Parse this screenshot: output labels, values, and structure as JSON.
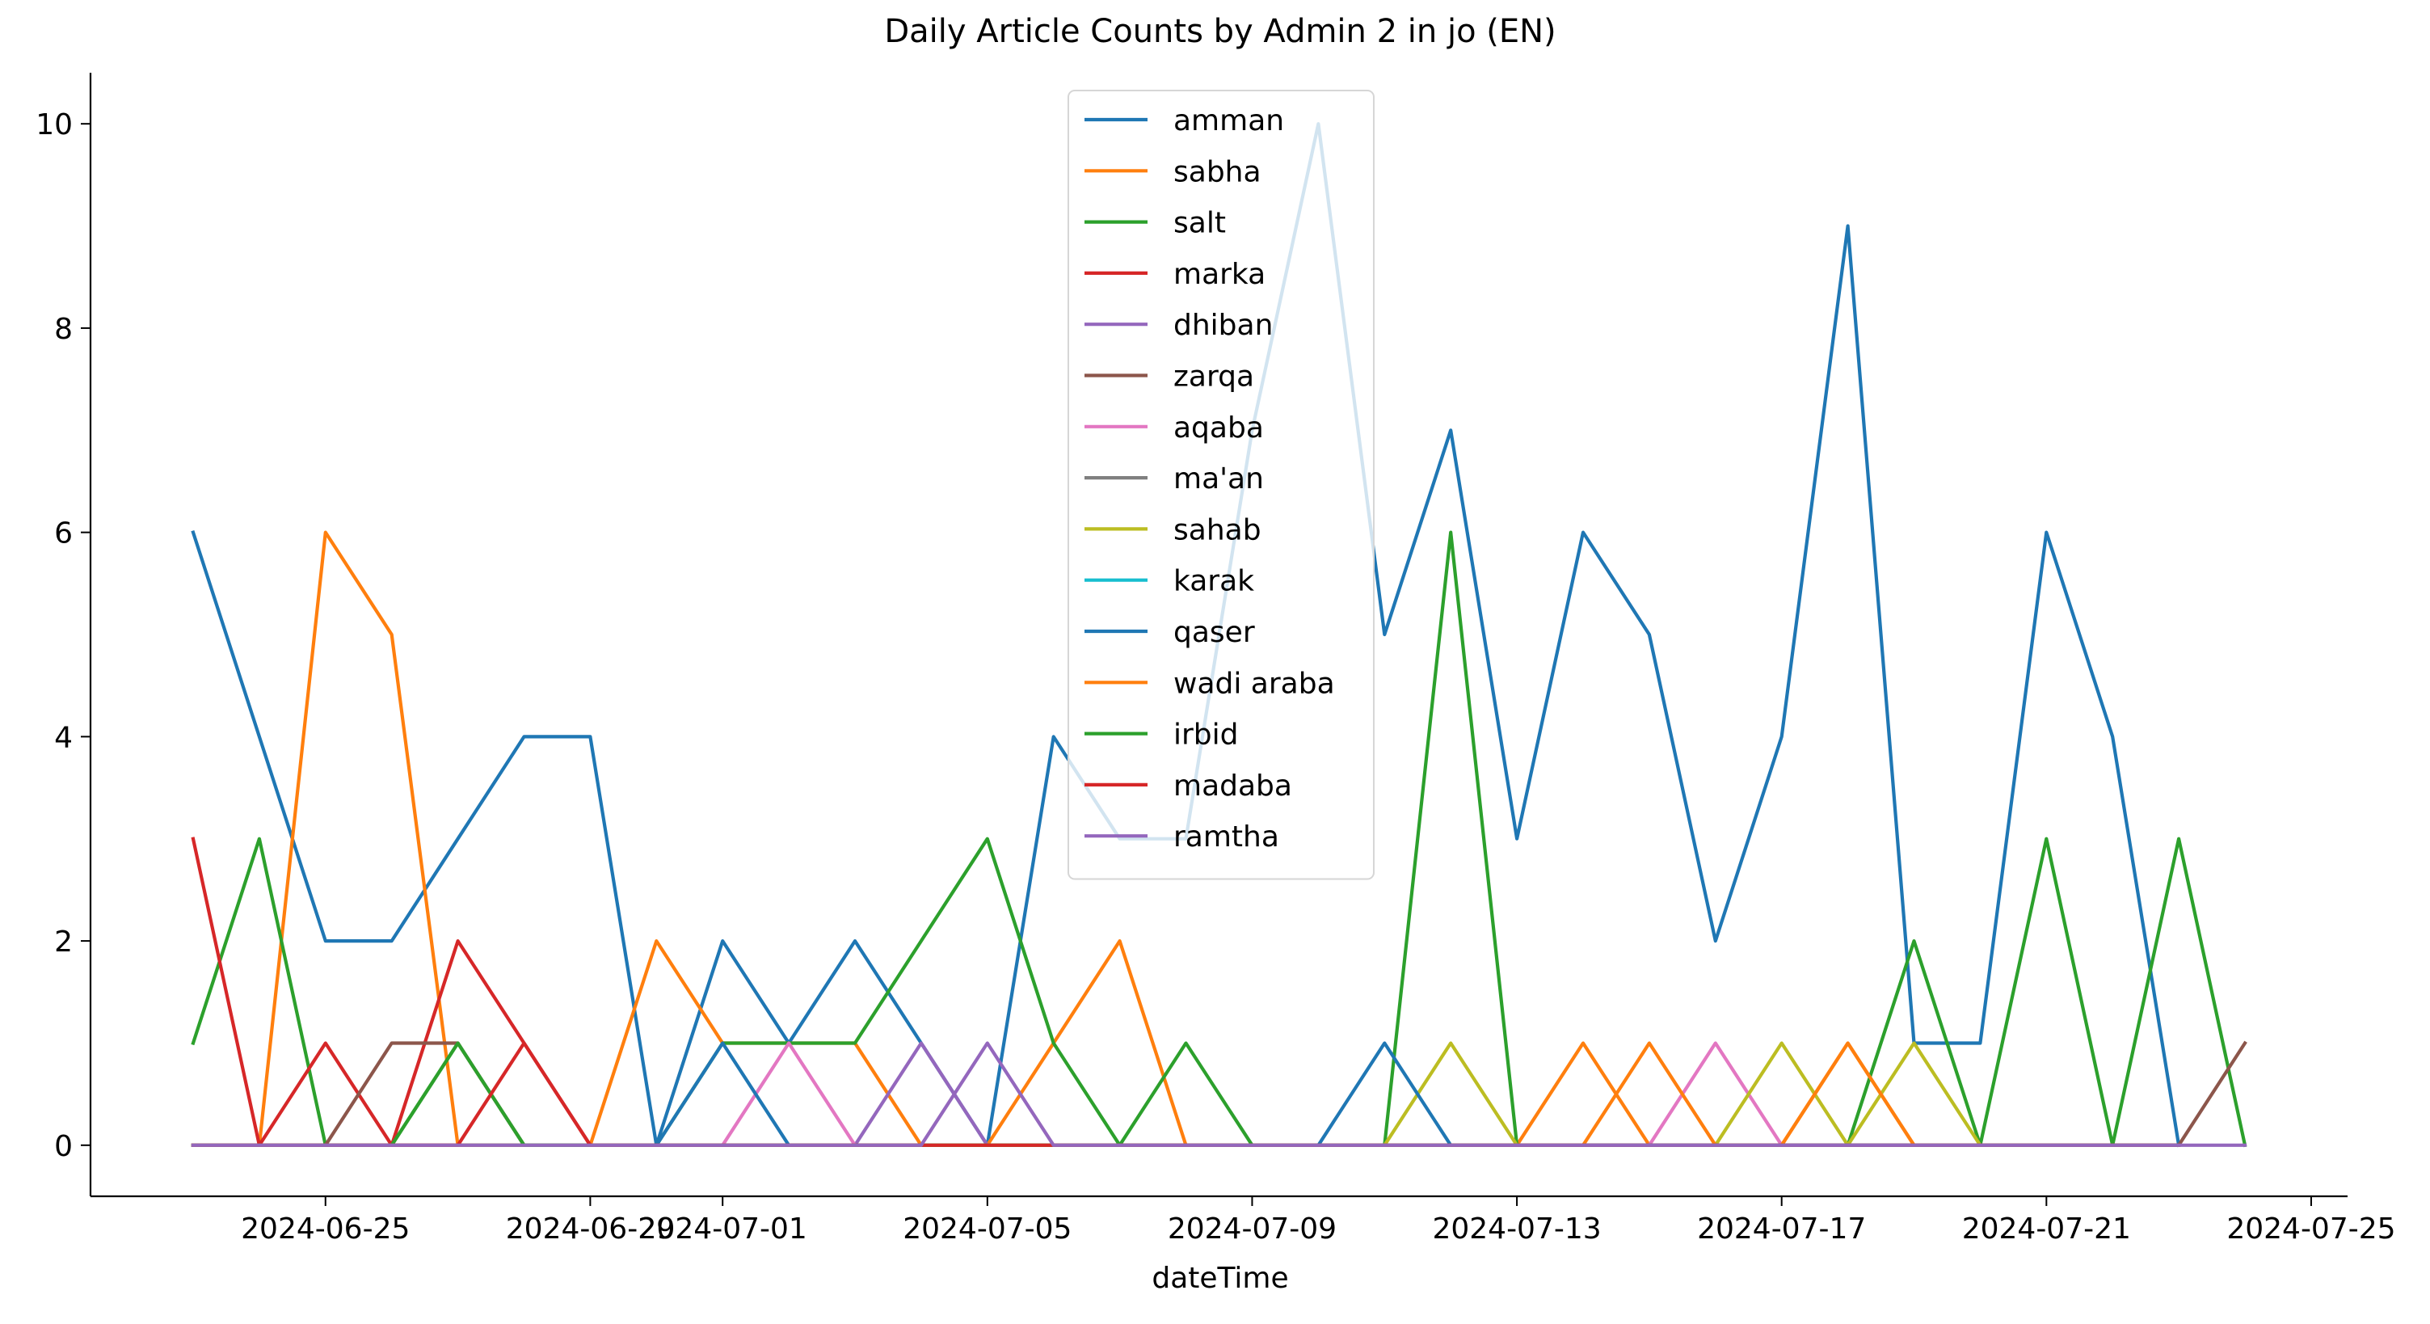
{
  "chart_data": {
    "type": "line",
    "title": "Daily Article Counts by Admin 2 in jo (EN)",
    "xlabel": "dateTime",
    "ylabel": "",
    "x_type": "date",
    "dates": [
      "2024-06-23",
      "2024-06-24",
      "2024-06-25",
      "2024-06-26",
      "2024-06-27",
      "2024-06-28",
      "2024-06-29",
      "2024-06-30",
      "2024-07-01",
      "2024-07-02",
      "2024-07-03",
      "2024-07-04",
      "2024-07-05",
      "2024-07-06",
      "2024-07-07",
      "2024-07-08",
      "2024-07-09",
      "2024-07-10",
      "2024-07-11",
      "2024-07-12",
      "2024-07-13",
      "2024-07-14",
      "2024-07-15",
      "2024-07-16",
      "2024-07-17",
      "2024-07-18",
      "2024-07-19",
      "2024-07-20",
      "2024-07-21",
      "2024-07-22",
      "2024-07-23",
      "2024-07-24"
    ],
    "xlim": [
      "2024-06-21.45",
      "2024-07-25.55"
    ],
    "ylim": [
      -0.5,
      10.5
    ],
    "x_ticks": [
      "2024-06-25",
      "2024-06-29",
      "2024-07-01",
      "2024-07-05",
      "2024-07-09",
      "2024-07-13",
      "2024-07-17",
      "2024-07-21",
      "2024-07-25"
    ],
    "y_ticks": [
      0,
      2,
      4,
      6,
      8,
      10
    ],
    "grid": false,
    "legend_position": "top-center",
    "series": [
      {
        "name": "amman",
        "color": "#1f77b4",
        "values": [
          6,
          4,
          2,
          2,
          3,
          4,
          4,
          0,
          2,
          1,
          2,
          1,
          0,
          4,
          3,
          3,
          7,
          10,
          5,
          7,
          3,
          6,
          5,
          2,
          4,
          9,
          1,
          1,
          6,
          4,
          0,
          null
        ]
      },
      {
        "name": "sabha",
        "color": "#ff7f0e",
        "values": [
          0,
          0,
          6,
          5,
          0,
          0,
          0,
          2,
          1,
          1,
          1,
          0,
          0,
          1,
          2,
          0,
          0,
          0,
          0,
          0,
          0,
          1,
          0,
          0,
          0,
          1,
          0,
          0,
          0,
          0,
          0,
          null
        ]
      },
      {
        "name": "salt",
        "color": "#2ca02c",
        "values": [
          1,
          3,
          0,
          0,
          1,
          0,
          0,
          0,
          1,
          1,
          1,
          2,
          3,
          1,
          0,
          1,
          0,
          0,
          0,
          6,
          0,
          0,
          0,
          0,
          0,
          0,
          2,
          0,
          3,
          0,
          3,
          0
        ]
      },
      {
        "name": "marka",
        "color": "#d62728",
        "values": [
          3,
          0,
          1,
          0,
          2,
          1,
          0,
          0,
          0,
          0,
          0,
          0,
          0,
          0,
          0,
          0,
          0,
          0,
          0,
          0,
          0,
          0,
          0,
          0,
          0,
          0,
          0,
          0,
          0,
          0,
          0,
          null
        ]
      },
      {
        "name": "dhiban",
        "color": "#9467bd",
        "values": [
          0,
          0,
          0,
          0,
          0,
          0,
          0,
          0,
          0,
          0,
          0,
          1,
          0,
          0,
          0,
          0,
          0,
          0,
          0,
          0,
          0,
          0,
          0,
          0,
          0,
          0,
          0,
          0,
          0,
          0,
          0,
          null
        ]
      },
      {
        "name": "zarqa",
        "color": "#8c564b",
        "values": [
          0,
          0,
          0,
          1,
          1,
          0,
          0,
          0,
          0,
          0,
          0,
          0,
          0,
          0,
          0,
          0,
          0,
          0,
          0,
          0,
          0,
          0,
          0,
          0,
          0,
          0,
          0,
          0,
          0,
          0,
          0,
          1
        ]
      },
      {
        "name": "aqaba",
        "color": "#e377c2",
        "values": [
          0,
          0,
          0,
          0,
          0,
          0,
          0,
          0,
          0,
          1,
          0,
          0,
          0,
          0,
          0,
          0,
          0,
          0,
          0,
          0,
          0,
          0,
          0,
          1,
          0,
          0,
          0,
          0,
          0,
          0,
          0,
          null
        ]
      },
      {
        "name": "ma'an",
        "color": "#7f7f7f",
        "values": [
          0,
          0,
          0,
          0,
          0,
          0,
          0,
          0,
          0,
          0,
          0,
          0,
          0,
          0,
          0,
          0,
          0,
          0,
          0,
          0,
          0,
          0,
          0,
          0,
          0,
          0,
          0,
          0,
          0,
          0,
          0,
          null
        ]
      },
      {
        "name": "sahab",
        "color": "#bcbd22",
        "values": [
          0,
          0,
          0,
          0,
          0,
          0,
          0,
          0,
          0,
          0,
          0,
          0,
          0,
          0,
          0,
          0,
          0,
          0,
          0,
          1,
          0,
          0,
          0,
          0,
          1,
          0,
          1,
          0,
          0,
          0,
          0,
          null
        ]
      },
      {
        "name": "karak",
        "color": "#17becf",
        "values": [
          0,
          0,
          0,
          0,
          0,
          0,
          0,
          0,
          0,
          0,
          0,
          0,
          0,
          0,
          0,
          0,
          0,
          0,
          0,
          0,
          0,
          0,
          0,
          0,
          0,
          0,
          0,
          0,
          0,
          0,
          0,
          null
        ]
      },
      {
        "name": "qaser",
        "color": "#1f77b4",
        "values": [
          0,
          0,
          0,
          0,
          0,
          0,
          0,
          0,
          1,
          0,
          0,
          0,
          0,
          0,
          0,
          0,
          0,
          0,
          1,
          0,
          0,
          0,
          0,
          0,
          0,
          0,
          0,
          0,
          0,
          0,
          0,
          null
        ]
      },
      {
        "name": "wadi araba",
        "color": "#ff7f0e",
        "values": [
          0,
          0,
          0,
          0,
          0,
          0,
          0,
          0,
          0,
          0,
          0,
          0,
          0,
          0,
          0,
          0,
          0,
          0,
          0,
          0,
          0,
          0,
          1,
          0,
          0,
          1,
          0,
          0,
          0,
          0,
          0,
          null
        ]
      },
      {
        "name": "irbid",
        "color": "#2ca02c",
        "values": [
          0,
          0,
          0,
          0,
          1,
          0,
          0,
          0,
          0,
          0,
          0,
          0,
          0,
          0,
          0,
          0,
          0,
          0,
          0,
          0,
          0,
          0,
          0,
          0,
          0,
          0,
          0,
          0,
          0,
          0,
          0,
          null
        ]
      },
      {
        "name": "madaba",
        "color": "#d62728",
        "values": [
          0,
          0,
          0,
          0,
          0,
          1,
          0,
          0,
          0,
          0,
          0,
          0,
          0,
          0,
          0,
          0,
          0,
          0,
          0,
          0,
          0,
          0,
          0,
          0,
          0,
          0,
          0,
          0,
          0,
          0,
          0,
          null
        ]
      },
      {
        "name": "ramtha",
        "color": "#9467bd",
        "values": [
          0,
          0,
          0,
          0,
          0,
          0,
          0,
          0,
          0,
          0,
          0,
          0,
          1,
          0,
          0,
          0,
          0,
          0,
          0,
          0,
          0,
          0,
          0,
          0,
          0,
          0,
          0,
          0,
          0,
          0,
          0,
          0
        ]
      }
    ]
  }
}
